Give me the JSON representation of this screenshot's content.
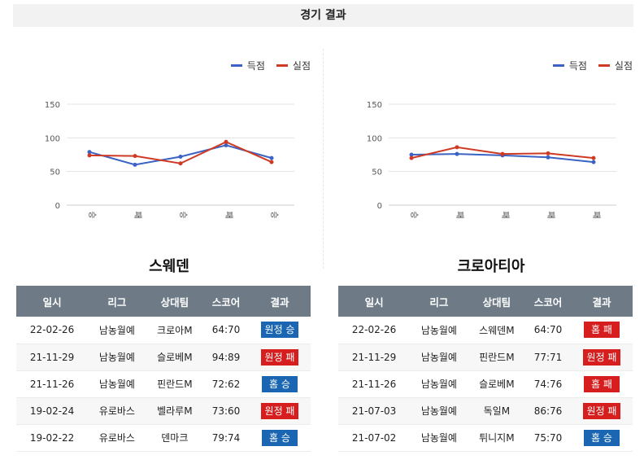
{
  "page_title": "경기 결과",
  "legend": {
    "scored": "득점",
    "conceded": "실점"
  },
  "colors": {
    "scored": "#3a63c4",
    "conceded": "#cf3a25",
    "header_bg": "#6e7b87",
    "win_badge": "#1a66b3",
    "loss_badge": "#d61e1e"
  },
  "table_headers": {
    "date": "일시",
    "league": "리그",
    "opponent": "상대팀",
    "score": "스코어",
    "result": "결과"
  },
  "teams": [
    {
      "name": "스웨덴",
      "chart_data": {
        "type": "line",
        "categories": [
          "승",
          "패",
          "승",
          "패",
          "승"
        ],
        "series": [
          {
            "name": "득점",
            "values": [
              79,
              60,
              72,
              89,
              70
            ]
          },
          {
            "name": "실점",
            "values": [
              74,
              73,
              62,
              94,
              64
            ]
          }
        ],
        "yticks": [
          0,
          50,
          100,
          150
        ],
        "ylim": [
          0,
          150
        ],
        "grid": true,
        "legend": "top-right"
      },
      "matches": [
        {
          "date": "22-02-26",
          "league": "남농월예",
          "opponent": "크로아M",
          "score": "64:70",
          "result": "원정 승",
          "color": "blue"
        },
        {
          "date": "21-11-29",
          "league": "남농월예",
          "opponent": "슬로베M",
          "score": "94:89",
          "result": "원정 패",
          "color": "red"
        },
        {
          "date": "21-11-26",
          "league": "남농월예",
          "opponent": "핀란드M",
          "score": "72:62",
          "result": "홈 승",
          "color": "blue"
        },
        {
          "date": "19-02-24",
          "league": "유로바스",
          "opponent": "벨라루M",
          "score": "73:60",
          "result": "원정 패",
          "color": "red"
        },
        {
          "date": "19-02-22",
          "league": "유로바스",
          "opponent": "덴마크",
          "score": "79:74",
          "result": "홈 승",
          "color": "blue"
        }
      ]
    },
    {
      "name": "크로아티아",
      "chart_data": {
        "type": "line",
        "categories": [
          "승",
          "패",
          "패",
          "패",
          "패"
        ],
        "series": [
          {
            "name": "득점",
            "values": [
              75,
              76,
              74,
              71,
              64
            ]
          },
          {
            "name": "실점",
            "values": [
              70,
              86,
              76,
              77,
              70
            ]
          }
        ],
        "yticks": [
          0,
          50,
          100,
          150
        ],
        "ylim": [
          0,
          150
        ],
        "grid": true,
        "legend": "top-right"
      },
      "matches": [
        {
          "date": "22-02-26",
          "league": "남농월예",
          "opponent": "스웨덴M",
          "score": "64:70",
          "result": "홈 패",
          "color": "red"
        },
        {
          "date": "21-11-29",
          "league": "남농월예",
          "opponent": "핀란드M",
          "score": "77:71",
          "result": "원정 패",
          "color": "red"
        },
        {
          "date": "21-11-26",
          "league": "남농월예",
          "opponent": "슬로베M",
          "score": "74:76",
          "result": "홈 패",
          "color": "red"
        },
        {
          "date": "21-07-03",
          "league": "남농월예",
          "opponent": "독일M",
          "score": "86:76",
          "result": "원정 패",
          "color": "red"
        },
        {
          "date": "21-07-02",
          "league": "남농월예",
          "opponent": "튀니지M",
          "score": "75:70",
          "result": "홈 승",
          "color": "blue"
        }
      ]
    }
  ]
}
